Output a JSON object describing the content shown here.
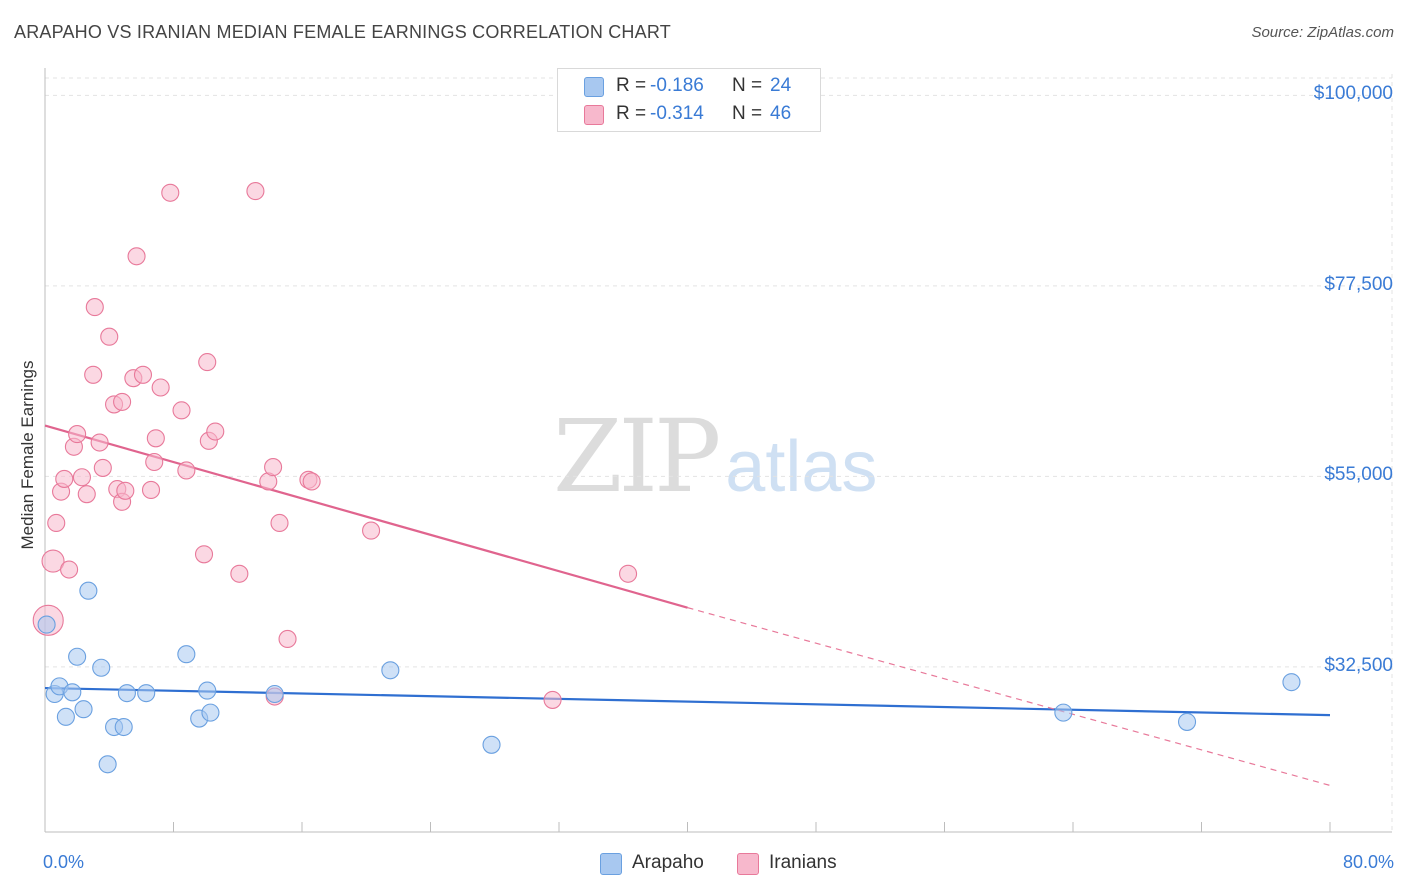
{
  "header": {
    "title": "ARAPAHO VS IRANIAN MEDIAN FEMALE EARNINGS CORRELATION CHART",
    "source": "Source: ZipAtlas.com"
  },
  "watermark": {
    "zip": "ZIP",
    "atlas": "atlas"
  },
  "legend_top": [
    {
      "r_label": "R =",
      "r_value": "-0.186",
      "n_label": "N =",
      "n_value": "24",
      "color": "#a8c8f0"
    },
    {
      "r_label": "R =",
      "r_value": "-0.314",
      "n_label": "N =",
      "n_value": "46",
      "color": "#f7b8cc"
    }
  ],
  "legend_bottom": [
    {
      "label": "Arapaho",
      "color": "#a8c8f0"
    },
    {
      "label": "Iranians",
      "color": "#f7b8cc"
    }
  ],
  "chart_data": {
    "type": "scatter",
    "title": "ARAPAHO VS IRANIAN MEDIAN FEMALE EARNINGS CORRELATION CHART",
    "xlabel": "",
    "ylabel": "Median Female Earnings",
    "xlim": [
      0,
      80
    ],
    "ylim": [
      13000,
      103000
    ],
    "x_tick_labels": [
      "0.0%",
      "80.0%"
    ],
    "y_ticks": [
      32500,
      55000,
      77500,
      100000
    ],
    "y_tick_labels": [
      "$32,500",
      "$55,000",
      "$77,500",
      "$100,000"
    ],
    "grid": true,
    "legend_position": "top-center",
    "series": [
      {
        "name": "Arapaho",
        "color": "#6aa0e0",
        "fill": "#a8c8f0",
        "points": [
          [
            0.1,
            37500
          ],
          [
            0.6,
            29300
          ],
          [
            0.9,
            30200
          ],
          [
            1.3,
            26600
          ],
          [
            1.7,
            29500
          ],
          [
            2.0,
            33700
          ],
          [
            2.4,
            27500
          ],
          [
            2.7,
            41500
          ],
          [
            3.5,
            32400
          ],
          [
            3.9,
            21000
          ],
          [
            4.3,
            25400
          ],
          [
            4.9,
            25400
          ],
          [
            5.1,
            29400
          ],
          [
            6.3,
            29400
          ],
          [
            8.8,
            34000
          ],
          [
            9.6,
            26400
          ],
          [
            10.1,
            29700
          ],
          [
            10.3,
            27100
          ],
          [
            14.3,
            29300
          ],
          [
            21.5,
            32100
          ],
          [
            27.8,
            23300
          ],
          [
            63.4,
            27100
          ],
          [
            71.1,
            26000
          ],
          [
            77.6,
            30700
          ]
        ],
        "trend": {
          "x0": 0,
          "y0": 30000,
          "x1": 80,
          "y1": 26800
        }
      },
      {
        "name": "Iranians",
        "color": "#e8799a",
        "fill": "#f7b8cc",
        "points": [
          [
            0.2,
            38000
          ],
          [
            0.5,
            45000
          ],
          [
            0.7,
            49500
          ],
          [
            1.0,
            53200
          ],
          [
            1.2,
            54700
          ],
          [
            1.5,
            44000
          ],
          [
            1.8,
            58500
          ],
          [
            2.0,
            60000
          ],
          [
            2.3,
            54900
          ],
          [
            2.6,
            52900
          ],
          [
            3.0,
            67000
          ],
          [
            3.1,
            75000
          ],
          [
            3.4,
            59000
          ],
          [
            3.6,
            56000
          ],
          [
            4.0,
            71500
          ],
          [
            4.3,
            63500
          ],
          [
            4.5,
            53500
          ],
          [
            4.8,
            52000
          ],
          [
            4.8,
            63800
          ],
          [
            5.0,
            53300
          ],
          [
            5.5,
            66600
          ],
          [
            5.7,
            81000
          ],
          [
            6.1,
            67000
          ],
          [
            6.6,
            53400
          ],
          [
            6.8,
            56700
          ],
          [
            6.9,
            59500
          ],
          [
            7.2,
            65500
          ],
          [
            7.8,
            88500
          ],
          [
            8.5,
            62800
          ],
          [
            8.8,
            55700
          ],
          [
            9.9,
            45800
          ],
          [
            10.1,
            68500
          ],
          [
            10.2,
            59200
          ],
          [
            10.6,
            60300
          ],
          [
            12.1,
            43500
          ],
          [
            13.1,
            88700
          ],
          [
            13.9,
            54400
          ],
          [
            14.2,
            56100
          ],
          [
            14.3,
            29000
          ],
          [
            14.6,
            49500
          ],
          [
            15.1,
            35800
          ],
          [
            16.4,
            54600
          ],
          [
            16.6,
            54400
          ],
          [
            20.3,
            48600
          ],
          [
            31.6,
            28600
          ],
          [
            36.3,
            43500
          ]
        ],
        "trend": {
          "x0": 0,
          "y0": 61000,
          "x1": 40,
          "y1": 39500
        },
        "trend_extension": {
          "x0": 40,
          "y0": 39500,
          "x1": 80,
          "y1": 18500
        }
      }
    ]
  }
}
